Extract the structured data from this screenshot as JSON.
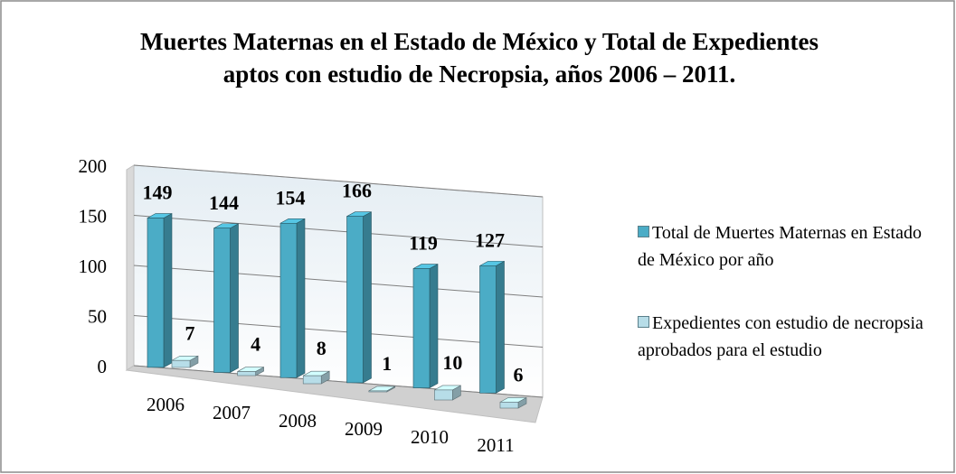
{
  "chart_data": {
    "type": "bar3d",
    "title": "Muertes Maternas en el Estado de México y Total de Expedientes aptos con estudio de Necropsia, años 2006 – 2011.",
    "categories": [
      "2006",
      "2007",
      "2008",
      "2009",
      "2010",
      "2011"
    ],
    "series": [
      {
        "name": "Total de Muertes Maternas en Estado de México por año",
        "color": "#4bacc6",
        "values": [
          149,
          144,
          154,
          166,
          119,
          127
        ]
      },
      {
        "name": "Expedientes con estudio de necropsia aprobados para el estudio",
        "color": "#b7dde8",
        "values": [
          7,
          4,
          8,
          1,
          10,
          6
        ]
      }
    ],
    "ylim": [
      0,
      200
    ],
    "yticks": [
      0,
      50,
      100,
      150,
      200
    ],
    "grid": true,
    "legend": "right"
  }
}
